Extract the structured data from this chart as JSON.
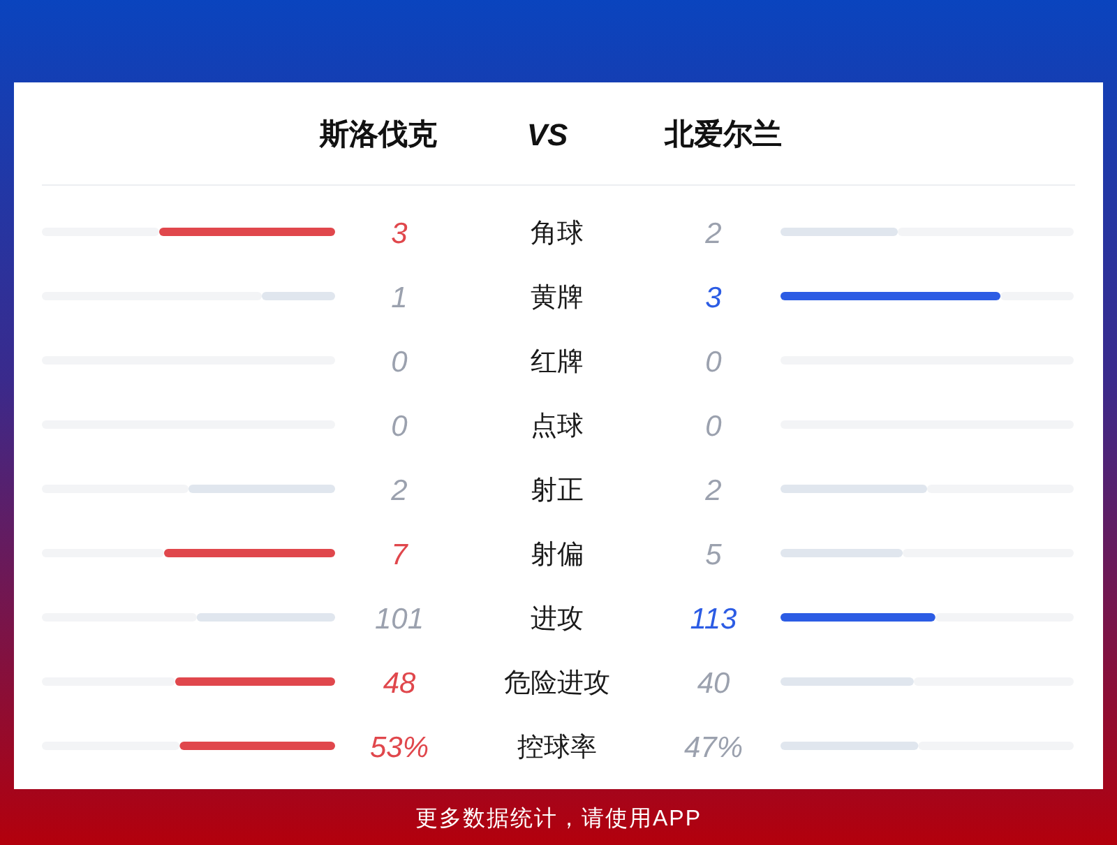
{
  "chart_data": {
    "type": "other",
    "title": "VS",
    "categories": [
      "角球",
      "黄牌",
      "红牌",
      "点球",
      "射正",
      "射偏",
      "进攻",
      "危险进攻",
      "控球率"
    ],
    "series": [
      {
        "name": "斯洛伐克",
        "values": [
          3,
          1,
          0,
          0,
          2,
          7,
          101,
          48,
          53
        ],
        "colors": [
          "#e0474c",
          "#e0e6ee",
          "#e0e6ee",
          "#e0e6ee",
          "#e0e6ee",
          "#e0474c",
          "#e0e6ee",
          "#e0474c",
          "#e0474c"
        ],
        "value_labels": [
          "3",
          "1",
          "0",
          "0",
          "2",
          "7",
          "101",
          "48",
          "53%"
        ]
      },
      {
        "name": "北爱尔兰",
        "values": [
          2,
          3,
          0,
          0,
          2,
          5,
          113,
          40,
          47
        ],
        "colors": [
          "#e0e6ee",
          "#2c5ce4",
          "#e0e6ee",
          "#e0e6ee",
          "#e0e6ee",
          "#e0e6ee",
          "#2c5ce4",
          "#e0e6ee",
          "#e0e6ee"
        ],
        "value_labels": [
          "2",
          "3",
          "0",
          "0",
          "2",
          "5",
          "113",
          "40",
          "47%"
        ]
      }
    ],
    "annotations": [
      "更多数据统计，请使用APP"
    ]
  }
}
